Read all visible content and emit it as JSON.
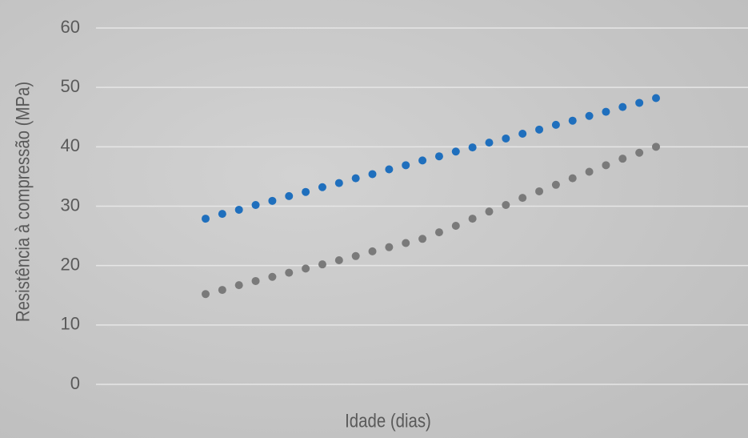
{
  "chart_data": {
    "type": "scatter-line",
    "x_label": "Idade (dias)",
    "y_label": "Resistência à compressão (MPa)",
    "categories": [
      null,
      null,
      null,
      null,
      null,
      null,
      null,
      null,
      null,
      null,
      null,
      null,
      null,
      null,
      null,
      null,
      null,
      null,
      null,
      null,
      null,
      null,
      null,
      null,
      null,
      null,
      null,
      null
    ],
    "series": [
      {
        "color": "#1f6fbd",
        "values": [
          27.9,
          28.7,
          29.4,
          30.2,
          30.9,
          31.7,
          32.4,
          33.2,
          33.9,
          34.7,
          35.4,
          36.2,
          36.9,
          37.7,
          38.4,
          39.2,
          39.9,
          40.7,
          41.4,
          42.2,
          42.9,
          43.7,
          44.4,
          45.2,
          45.9,
          46.7,
          47.4,
          48.2
        ]
      },
      {
        "color": "#7a7a7a",
        "values": [
          15.2,
          15.9,
          16.7,
          17.4,
          18.1,
          18.8,
          19.5,
          20.2,
          20.9,
          21.6,
          22.4,
          23.1,
          23.8,
          24.5,
          25.6,
          26.7,
          27.9,
          29.1,
          30.2,
          31.4,
          32.5,
          33.6,
          34.7,
          35.8,
          36.9,
          38.0,
          39.0,
          40.0
        ]
      }
    ],
    "ylim": [
      0,
      60
    ],
    "yticks": [
      0,
      10,
      20,
      30,
      40,
      50,
      60
    ],
    "grid": true
  }
}
